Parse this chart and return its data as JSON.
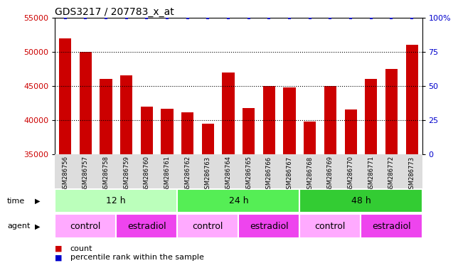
{
  "title": "GDS3217 / 207783_x_at",
  "samples": [
    "GSM286756",
    "GSM286757",
    "GSM286758",
    "GSM286759",
    "GSM286760",
    "GSM286761",
    "GSM286762",
    "GSM286763",
    "GSM286764",
    "GSM286765",
    "GSM286766",
    "GSM286767",
    "GSM286768",
    "GSM286769",
    "GSM286770",
    "GSM286771",
    "GSM286772",
    "GSM286773"
  ],
  "counts": [
    52000,
    50000,
    46000,
    46500,
    42000,
    41700,
    41100,
    39500,
    47000,
    41800,
    45000,
    44800,
    39800,
    45000,
    41500,
    46000,
    47500,
    51000
  ],
  "bar_color": "#cc0000",
  "dot_color": "#0000cc",
  "ylim_left": [
    35000,
    55000
  ],
  "ylim_right": [
    0,
    100
  ],
  "yticks_left": [
    35000,
    40000,
    45000,
    50000,
    55000
  ],
  "ytick_labels_left": [
    "35000",
    "40000",
    "45000",
    "50000",
    "55000"
  ],
  "yticks_right": [
    0,
    25,
    50,
    75,
    100
  ],
  "ytick_labels_right": [
    "0",
    "25",
    "50",
    "75",
    "100%"
  ],
  "gridlines": [
    40000,
    45000,
    50000
  ],
  "time_groups": [
    {
      "label": "12 h",
      "start": 0,
      "end": 6,
      "color": "#bbffbb"
    },
    {
      "label": "24 h",
      "start": 6,
      "end": 12,
      "color": "#55ee55"
    },
    {
      "label": "48 h",
      "start": 12,
      "end": 18,
      "color": "#33cc33"
    }
  ],
  "agent_groups": [
    {
      "label": "control",
      "start": 0,
      "end": 3,
      "color": "#ffaaff"
    },
    {
      "label": "estradiol",
      "start": 3,
      "end": 6,
      "color": "#ee44ee"
    },
    {
      "label": "control",
      "start": 6,
      "end": 9,
      "color": "#ffaaff"
    },
    {
      "label": "estradiol",
      "start": 9,
      "end": 12,
      "color": "#ee44ee"
    },
    {
      "label": "control",
      "start": 12,
      "end": 15,
      "color": "#ffaaff"
    },
    {
      "label": "estradiol",
      "start": 15,
      "end": 18,
      "color": "#ee44ee"
    }
  ],
  "legend_items": [
    {
      "label": "count",
      "color": "#cc0000"
    },
    {
      "label": "percentile rank within the sample",
      "color": "#0000cc"
    }
  ],
  "tick_label_color_left": "#cc0000",
  "tick_label_color_right": "#0000cc",
  "bg_color": "#ffffff",
  "bar_width": 0.6,
  "xticklabel_bg": "#dddddd",
  "xticklabel_fontsize": 6,
  "bar_bottom": 35000
}
